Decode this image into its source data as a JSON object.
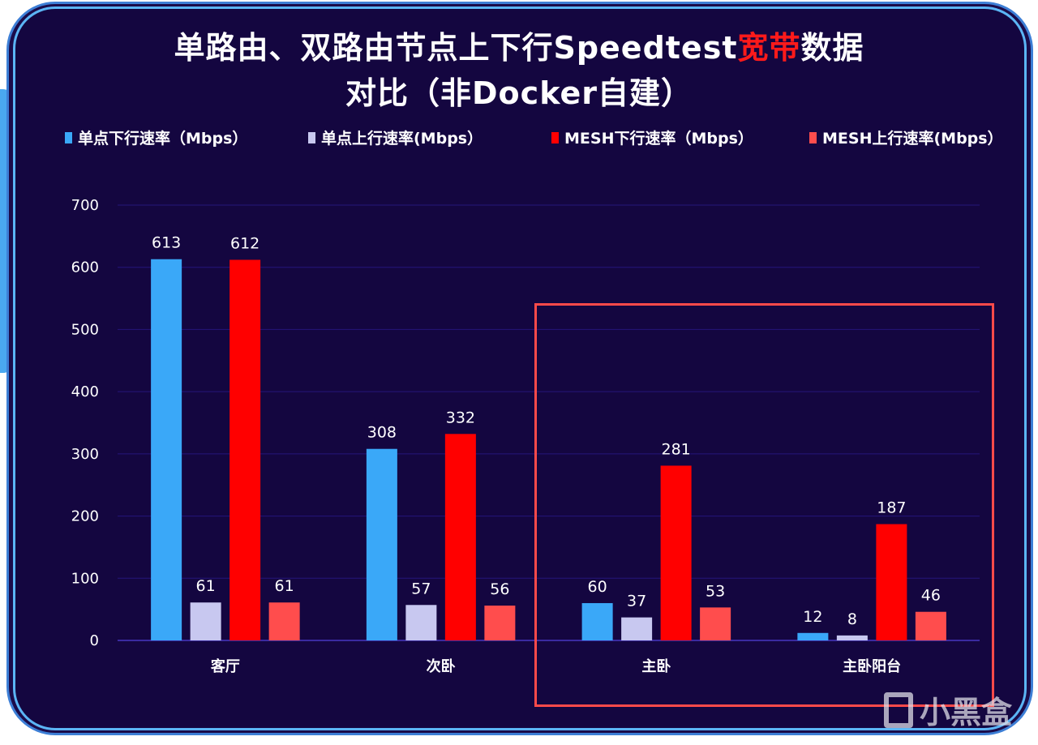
{
  "chart_data": {
    "type": "bar",
    "title_line1_pre": "单路由、双路由节点上下行Speedtest",
    "title_highlight": "宽带",
    "title_line1_post": "数据",
    "title_line2": "对比（非Docker自建）",
    "categories": [
      "客厅",
      "次卧",
      "主卧",
      "主卧阳台"
    ],
    "series": [
      {
        "name": "单点下行速率（Mbps）",
        "color": "#3aa8f8",
        "values": [
          613,
          308,
          60,
          12
        ]
      },
      {
        "name": "单点上行速率(Mbps）",
        "color": "#c8c8f0",
        "values": [
          61,
          57,
          37,
          8
        ]
      },
      {
        "name": "MESH下行速率（Mbps）",
        "color": "#ff0000",
        "values": [
          612,
          332,
          281,
          187
        ]
      },
      {
        "name": "MESH上行速率(Mbps）",
        "color": "#ff4d4d",
        "values": [
          61,
          56,
          53,
          46
        ]
      }
    ],
    "yticks": [
      0,
      100,
      200,
      300,
      400,
      500,
      600,
      700
    ],
    "ylim": [
      0,
      700
    ],
    "xlabel": "",
    "ylabel": "",
    "grid": true,
    "legend_position": "top",
    "highlighted_categories": [
      "主卧",
      "主卧阳台"
    ]
  },
  "watermark": "小黑盒"
}
